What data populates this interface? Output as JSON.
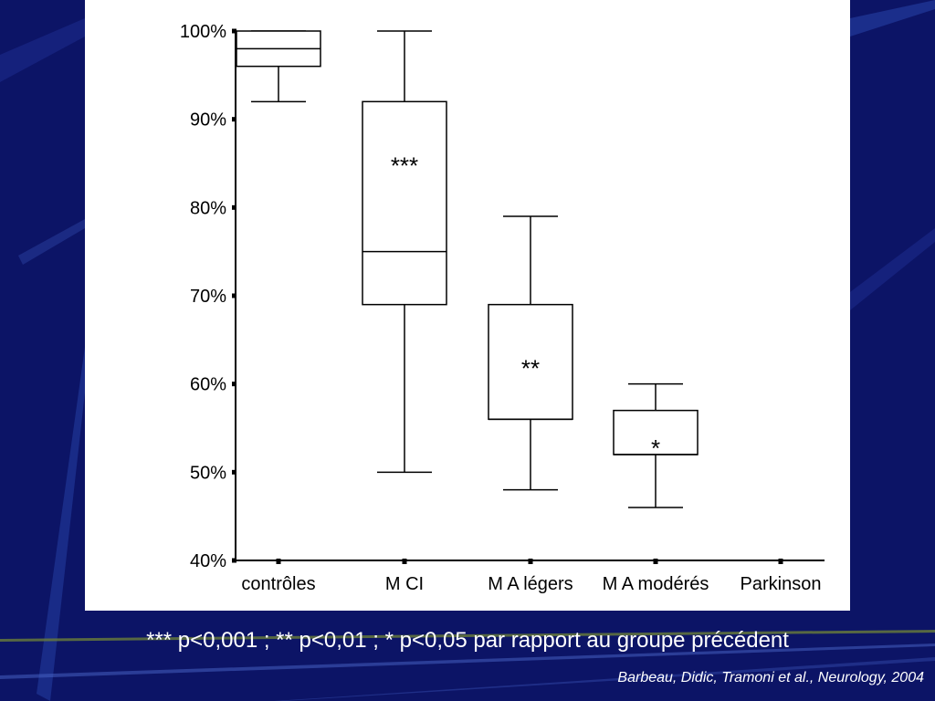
{
  "colors": {
    "background": "#0c1466",
    "panel": "#ffffff",
    "text": "#ffffff",
    "ink": "#000000"
  },
  "chart_data": {
    "type": "box",
    "title": "",
    "xlabel": "",
    "ylabel": "",
    "ylim": [
      40,
      100
    ],
    "y_ticks": [
      "40%",
      "50%",
      "60%",
      "70%",
      "80%",
      "90%",
      "100%"
    ],
    "y_tick_values": [
      40,
      50,
      60,
      70,
      80,
      90,
      100
    ],
    "grid": false,
    "categories": [
      "contrôles",
      "M CI",
      "M A légers",
      "M A modérés",
      "Parkinson"
    ],
    "boxes": [
      {
        "category": "contrôles",
        "min": 92,
        "q1": 96,
        "median": 98,
        "q3": 100,
        "max": 100,
        "annotation": ""
      },
      {
        "category": "M CI",
        "min": 50,
        "q1": 69,
        "median": 75,
        "q3": 92,
        "max": 100,
        "annotation": "***"
      },
      {
        "category": "M A légers",
        "min": 48,
        "q1": 56,
        "median": 56,
        "q3": 69,
        "max": 79,
        "annotation": "**"
      },
      {
        "category": "M A modérés",
        "min": 46,
        "q1": 52,
        "median": 52,
        "q3": 57,
        "max": 60,
        "annotation": "*"
      },
      {
        "category": "Parkinson",
        "min": null,
        "q1": null,
        "median": null,
        "q3": null,
        "max": null,
        "annotation": ""
      }
    ]
  },
  "footnote": "*** p<0,001 ; ** p<0,01 ; * p<0,05 par rapport au groupe précédent",
  "citation": "Barbeau, Didic, Tramoni et al., Neurology, 2004"
}
